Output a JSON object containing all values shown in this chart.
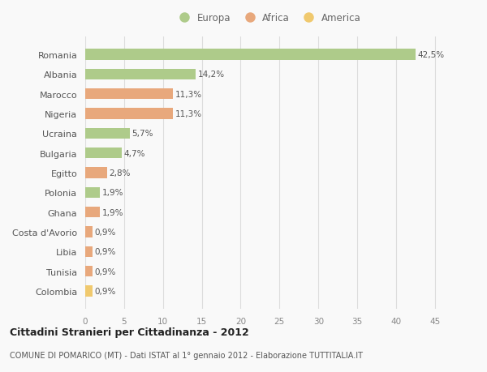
{
  "categories": [
    "Romania",
    "Albania",
    "Marocco",
    "Nigeria",
    "Ucraina",
    "Bulgaria",
    "Egitto",
    "Polonia",
    "Ghana",
    "Costa d'Avorio",
    "Libia",
    "Tunisia",
    "Colombia"
  ],
  "values": [
    42.5,
    14.2,
    11.3,
    11.3,
    5.7,
    4.7,
    2.8,
    1.9,
    1.9,
    0.9,
    0.9,
    0.9,
    0.9
  ],
  "labels": [
    "42,5%",
    "14,2%",
    "11,3%",
    "11,3%",
    "5,7%",
    "4,7%",
    "2,8%",
    "1,9%",
    "1,9%",
    "0,9%",
    "0,9%",
    "0,9%",
    "0,9%"
  ],
  "colors": [
    "#aecb8a",
    "#aecb8a",
    "#e8a87c",
    "#e8a87c",
    "#aecb8a",
    "#aecb8a",
    "#e8a87c",
    "#aecb8a",
    "#e8a87c",
    "#e8a87c",
    "#e8a87c",
    "#e8a87c",
    "#f0c96e"
  ],
  "legend_labels": [
    "Europa",
    "Africa",
    "America"
  ],
  "legend_colors": [
    "#aecb8a",
    "#e8a87c",
    "#f0c96e"
  ],
  "xlim": [
    0,
    47
  ],
  "xticks": [
    0,
    5,
    10,
    15,
    20,
    25,
    30,
    35,
    40,
    45
  ],
  "title1": "Cittadini Stranieri per Cittadinanza - 2012",
  "title2": "COMUNE DI POMARICO (MT) - Dati ISTAT al 1° gennaio 2012 - Elaborazione TUTTITALIA.IT",
  "background_color": "#f9f9f9",
  "grid_color": "#dddddd",
  "bar_height": 0.55
}
